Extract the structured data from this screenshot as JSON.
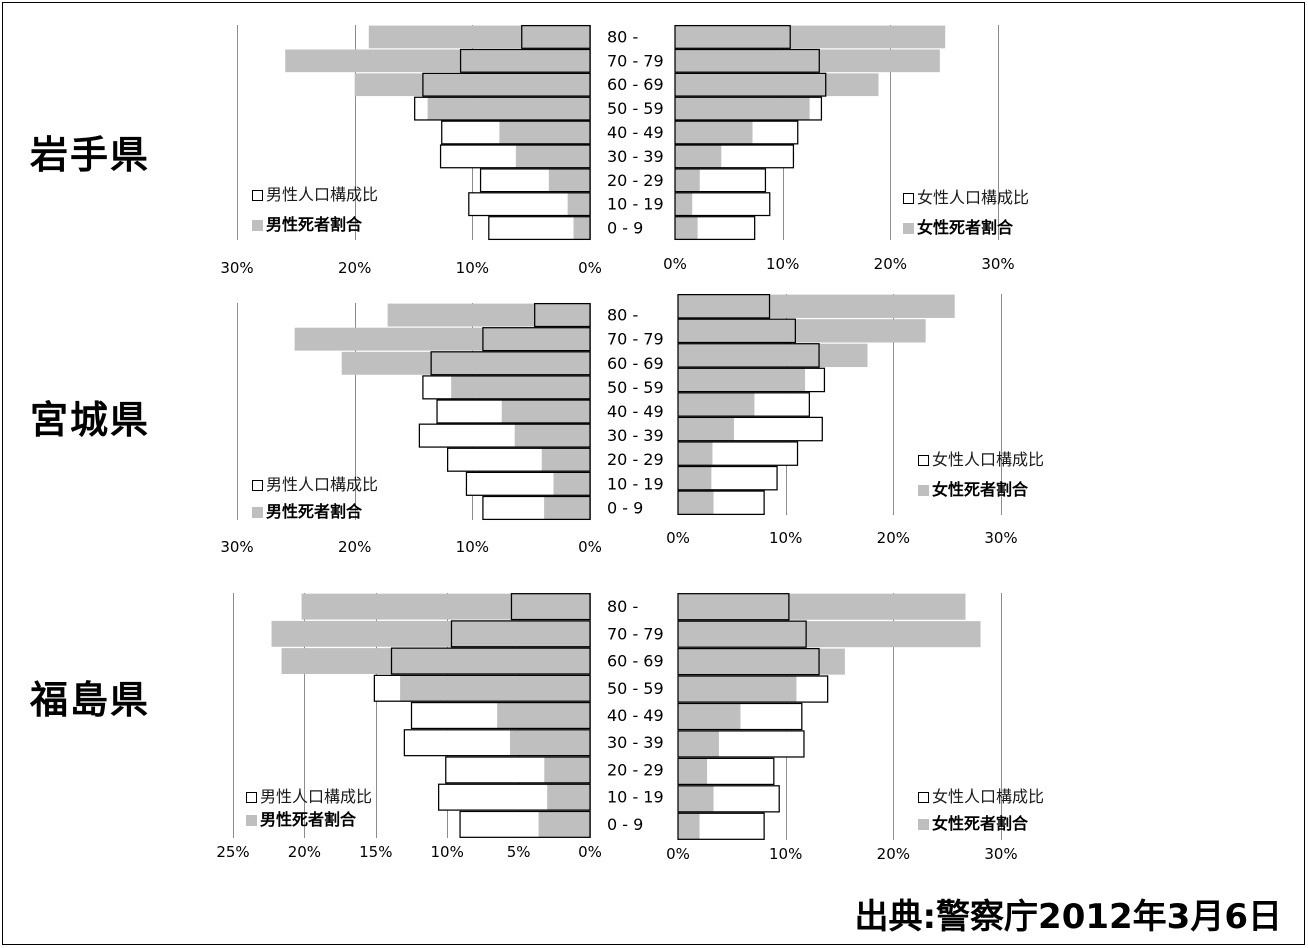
{
  "prefectures": [
    {
      "name": "岩手県"
    },
    {
      "name": "宮城県"
    },
    {
      "name": "福島県"
    }
  ],
  "source": "出典:警察庁2012年3月6日",
  "colors": {
    "population_fill": "#ffffff",
    "population_border": "#000000",
    "deaths_fill": "#bfbfbf",
    "gridline": "#8c8c8c",
    "text": "#000000"
  },
  "chart_data": [
    {
      "type": "bar",
      "orientation": "horizontal",
      "categories": [
        "80 -",
        "70 - 79",
        "60 - 69",
        "50 - 59",
        "40 - 49",
        "30 - 39",
        "20 - 29",
        "10 - 19",
        "0 - 9"
      ],
      "series": [
        {
          "name": "男性人口構成比",
          "values": [
            5.8,
            11.0,
            14.2,
            14.9,
            12.6,
            12.7,
            9.3,
            10.3,
            8.6
          ]
        },
        {
          "name": "男性死者割合",
          "values": [
            18.8,
            25.9,
            20.0,
            13.8,
            7.7,
            6.3,
            3.5,
            1.9,
            1.4
          ]
        }
      ],
      "xlim": [
        0,
        30
      ],
      "x_reversed": true,
      "x_ticks": [
        30,
        20,
        10,
        0
      ],
      "x_tick_labels": [
        "30%",
        "20%",
        "10%",
        "0%"
      ],
      "grid": true,
      "legend_position": "bottom-left"
    },
    {
      "type": "bar",
      "orientation": "horizontal",
      "categories": [
        "80 -",
        "70 - 79",
        "60 - 69",
        "50 - 59",
        "40 - 49",
        "30 - 39",
        "20 - 29",
        "10 - 19",
        "0 - 9"
      ],
      "series": [
        {
          "name": "女性人口構成比",
          "values": [
            10.7,
            13.4,
            14.0,
            13.6,
            11.4,
            11.0,
            8.4,
            8.8,
            7.4
          ]
        },
        {
          "name": "女性死者割合",
          "values": [
            25.1,
            24.6,
            18.9,
            12.5,
            7.2,
            4.3,
            2.3,
            1.6,
            2.1
          ]
        }
      ],
      "xlim": [
        0,
        30
      ],
      "x_reversed": false,
      "x_ticks": [
        0,
        10,
        20,
        30
      ],
      "x_tick_labels": [
        "0%",
        "10%",
        "20%",
        "30%"
      ],
      "grid": true,
      "legend_position": "bottom-right"
    },
    {
      "type": "bar",
      "orientation": "horizontal",
      "categories": [
        "80 -",
        "70 - 79",
        "60 - 69",
        "50 - 59",
        "40 - 49",
        "30 - 39",
        "20 - 29",
        "10 - 19",
        "0 - 9"
      ],
      "series": [
        {
          "name": "男性人口構成比",
          "values": [
            4.7,
            9.1,
            13.5,
            14.2,
            13.0,
            14.5,
            12.1,
            10.5,
            9.1
          ]
        },
        {
          "name": "男性死者割合",
          "values": [
            17.2,
            25.1,
            21.1,
            11.8,
            7.5,
            6.4,
            4.1,
            3.1,
            3.9
          ]
        }
      ],
      "xlim": [
        0,
        30
      ],
      "x_reversed": true,
      "x_ticks": [
        30,
        20,
        10,
        0
      ],
      "x_tick_labels": [
        "30%",
        "20%",
        "10%",
        "0%"
      ],
      "grid": true,
      "legend_position": "bottom-left"
    },
    {
      "type": "bar",
      "orientation": "horizontal",
      "categories": [
        "80 -",
        "70 - 79",
        "60 - 69",
        "50 - 59",
        "40 - 49",
        "30 - 39",
        "20 - 29",
        "10 - 19",
        "0 - 9"
      ],
      "series": [
        {
          "name": "女性人口構成比",
          "values": [
            8.5,
            10.9,
            13.1,
            13.6,
            12.2,
            13.4,
            11.1,
            9.2,
            8.0
          ]
        },
        {
          "name": "女性死者割合",
          "values": [
            25.7,
            23.0,
            17.6,
            11.8,
            7.1,
            5.2,
            3.2,
            3.1,
            3.3
          ]
        }
      ],
      "xlim": [
        0,
        30
      ],
      "x_reversed": false,
      "x_ticks": [
        0,
        10,
        20,
        30
      ],
      "x_tick_labels": [
        "0%",
        "10%",
        "20%",
        "30%"
      ],
      "grid": true,
      "legend_position": "bottom-right"
    },
    {
      "type": "bar",
      "orientation": "horizontal",
      "categories": [
        "80 -",
        "70 - 79",
        "60 - 69",
        "50 - 59",
        "40 - 49",
        "30 - 39",
        "20 - 29",
        "10 - 19",
        "0 - 9"
      ],
      "series": [
        {
          "name": "男性人口構成比",
          "values": [
            5.5,
            9.7,
            13.9,
            15.1,
            12.5,
            13.0,
            10.1,
            10.6,
            9.1
          ]
        },
        {
          "name": "男性死者割合",
          "values": [
            20.2,
            22.3,
            21.6,
            13.3,
            6.5,
            5.6,
            3.2,
            3.0,
            3.6
          ]
        }
      ],
      "xlim": [
        0,
        25
      ],
      "x_reversed": true,
      "x_ticks": [
        25,
        20,
        15,
        10,
        5,
        0
      ],
      "x_tick_labels": [
        "25%",
        "20%",
        "15%",
        "10%",
        "5%",
        "0%"
      ],
      "grid": true,
      "legend_position": "bottom-left"
    },
    {
      "type": "bar",
      "orientation": "horizontal",
      "categories": [
        "80 -",
        "70 - 79",
        "60 - 69",
        "50 - 59",
        "40 - 49",
        "30 - 39",
        "20 - 29",
        "10 - 19",
        "0 - 9"
      ],
      "series": [
        {
          "name": "女性人口構成比",
          "values": [
            10.3,
            11.9,
            13.1,
            13.9,
            11.5,
            11.7,
            8.9,
            9.4,
            8.0
          ]
        },
        {
          "name": "女性死者割合",
          "values": [
            26.7,
            28.1,
            15.5,
            11.0,
            5.8,
            3.8,
            2.7,
            3.3,
            2.0
          ]
        }
      ],
      "xlim": [
        0,
        30
      ],
      "x_reversed": false,
      "x_ticks": [
        0,
        10,
        20,
        30
      ],
      "x_tick_labels": [
        "0%",
        "10%",
        "20%",
        "30%"
      ],
      "grid": true,
      "legend_position": "bottom-right"
    }
  ]
}
